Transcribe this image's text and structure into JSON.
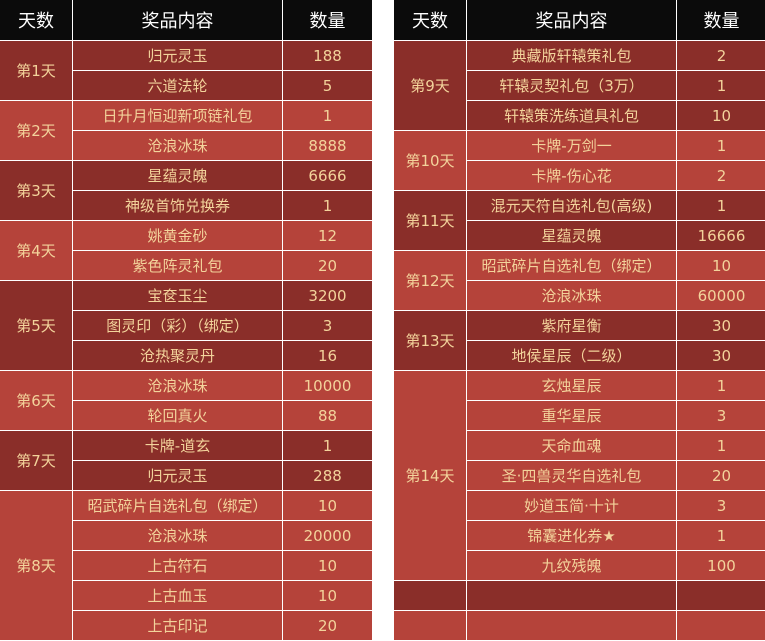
{
  "headers": {
    "day": "天数",
    "item": "奖品内容",
    "qty": "数量"
  },
  "colors": {
    "header_bg": "#0b0b0b",
    "dark_row": "#8a2e29",
    "light_row": "#b5433a",
    "text": "#f3d39b"
  },
  "left_table": [
    {
      "day": "第1天",
      "items": [
        {
          "name": "归元灵玉",
          "qty": "188"
        },
        {
          "name": "六道法轮",
          "qty": "5"
        }
      ]
    },
    {
      "day": "第2天",
      "items": [
        {
          "name": "日升月恒迎新项链礼包",
          "qty": "1"
        },
        {
          "name": "沧浪冰珠",
          "qty": "8888"
        }
      ]
    },
    {
      "day": "第3天",
      "items": [
        {
          "name": "星蕴灵魄",
          "qty": "6666"
        },
        {
          "name": "神级首饰兑换券",
          "qty": "1"
        }
      ]
    },
    {
      "day": "第4天",
      "items": [
        {
          "name": "姚黄金砂",
          "qty": "12"
        },
        {
          "name": "紫色阵灵礼包",
          "qty": "20"
        }
      ]
    },
    {
      "day": "第5天",
      "items": [
        {
          "name": "宝奁玉尘",
          "qty": "3200"
        },
        {
          "name": "图灵印（彩）（绑定）",
          "qty": "3"
        },
        {
          "name": "沧热聚灵丹",
          "qty": "16"
        }
      ]
    },
    {
      "day": "第6天",
      "items": [
        {
          "name": "沧浪冰珠",
          "qty": "10000"
        },
        {
          "name": "轮回真火",
          "qty": "88"
        }
      ]
    },
    {
      "day": "第7天",
      "items": [
        {
          "name": "卡牌-道玄",
          "qty": "1"
        },
        {
          "name": "归元灵玉",
          "qty": "288"
        }
      ]
    },
    {
      "day": "第8天",
      "items": [
        {
          "name": "昭武碎片自选礼包（绑定）",
          "qty": "10"
        },
        {
          "name": "沧浪冰珠",
          "qty": "20000"
        },
        {
          "name": "上古符石",
          "qty": "10"
        },
        {
          "name": "上古血玉",
          "qty": "10"
        },
        {
          "name": "上古印记",
          "qty": "20"
        }
      ]
    }
  ],
  "right_table": [
    {
      "day": "第9天",
      "items": [
        {
          "name": "典藏版轩辕策礼包",
          "qty": "2"
        },
        {
          "name": "轩辕灵契礼包（3万）",
          "qty": "1"
        },
        {
          "name": "轩辕策洗练道具礼包",
          "qty": "10"
        }
      ]
    },
    {
      "day": "第10天",
      "items": [
        {
          "name": "卡牌-万剑一",
          "qty": "1"
        },
        {
          "name": "卡牌-伤心花",
          "qty": "2"
        }
      ]
    },
    {
      "day": "第11天",
      "items": [
        {
          "name": "混元天符自选礼包(高级)",
          "qty": "1"
        },
        {
          "name": "星蕴灵魄",
          "qty": "16666"
        }
      ]
    },
    {
      "day": "第12天",
      "items": [
        {
          "name": "昭武碎片自选礼包（绑定）",
          "qty": "10"
        },
        {
          "name": "沧浪冰珠",
          "qty": "60000"
        }
      ]
    },
    {
      "day": "第13天",
      "items": [
        {
          "name": "紫府星衡",
          "qty": "30"
        },
        {
          "name": "地侯星辰（二级）",
          "qty": "30"
        }
      ]
    },
    {
      "day": "第14天",
      "items": [
        {
          "name": "玄烛星辰",
          "qty": "1"
        },
        {
          "name": "重华星辰",
          "qty": "3"
        },
        {
          "name": "天命血魂",
          "qty": "1"
        },
        {
          "name": "圣·四兽灵华自选礼包",
          "qty": "20"
        },
        {
          "name": "妙道玉简·十计",
          "qty": "3"
        },
        {
          "name": "锦囊进化券★",
          "qty": "1"
        },
        {
          "name": "九纹残魄",
          "qty": "100"
        }
      ]
    },
    {
      "day": "",
      "items": [
        {
          "name": "",
          "qty": ""
        }
      ]
    },
    {
      "day": "",
      "items": [
        {
          "name": "",
          "qty": ""
        }
      ]
    }
  ]
}
